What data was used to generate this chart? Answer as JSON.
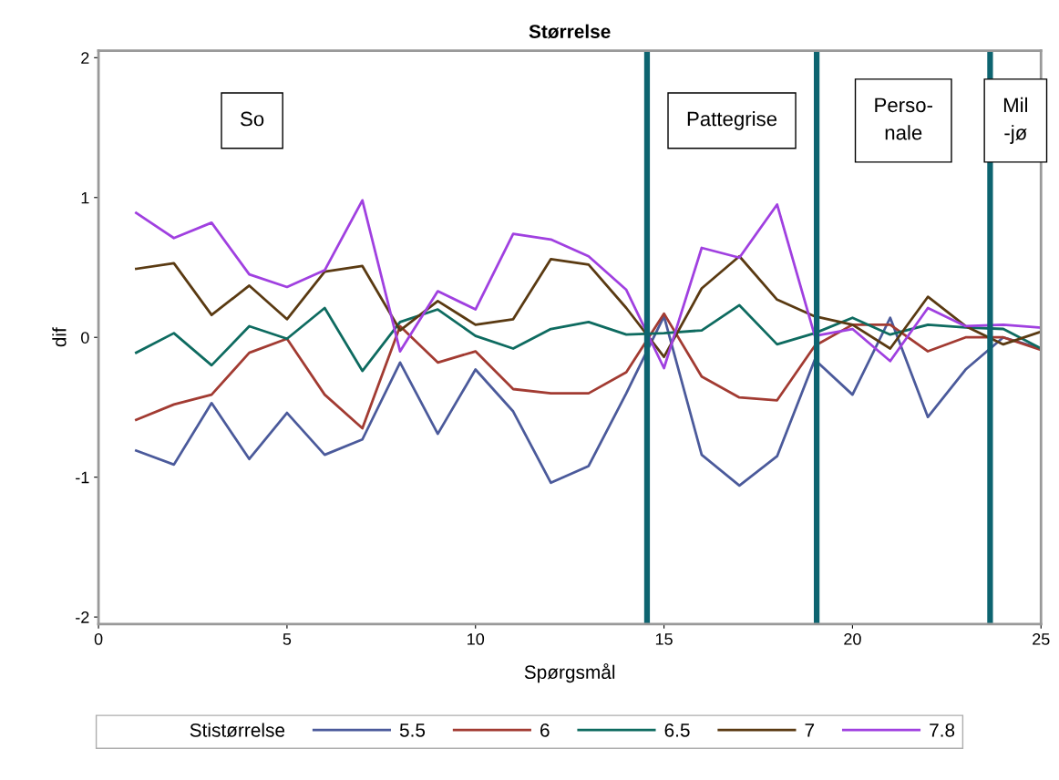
{
  "chart_data": {
    "type": "line",
    "title": "Størrelse",
    "xlabel": "Spørgsmål",
    "ylabel": "dif",
    "legend_title": "Stistørrelse",
    "legend": "bottom",
    "grid": false,
    "marker": "none",
    "line_style": "solid",
    "x": [
      1,
      2,
      3,
      4,
      5,
      6,
      7,
      8,
      9,
      10,
      11,
      12,
      13,
      14,
      15,
      16,
      17,
      18,
      19,
      20,
      21,
      22,
      23,
      24,
      25
    ],
    "xlim": [
      0,
      25
    ],
    "xticks": [
      0,
      5,
      10,
      15,
      20,
      25
    ],
    "ylim": [
      -2.05,
      2.05
    ],
    "yticks": [
      -2,
      -1,
      0,
      1,
      2
    ],
    "series": [
      {
        "name": "5.5",
        "color": "#4b5a9b",
        "values": [
          -0.81,
          -0.91,
          -0.47,
          -0.87,
          -0.54,
          -0.84,
          -0.73,
          -0.18,
          -0.69,
          -0.23,
          -0.53,
          -1.04,
          -0.92,
          -0.4,
          0.15,
          -0.84,
          -1.06,
          -0.85,
          -0.16,
          -0.41,
          0.14,
          -0.57,
          -0.23,
          0.0,
          -0.08
        ]
      },
      {
        "name": "6",
        "color": "#a23b32",
        "values": [
          -0.59,
          -0.48,
          -0.41,
          -0.11,
          -0.01,
          -0.41,
          -0.65,
          0.08,
          -0.18,
          -0.1,
          -0.37,
          -0.4,
          -0.4,
          -0.25,
          0.17,
          -0.28,
          -0.43,
          -0.45,
          -0.06,
          0.09,
          0.09,
          -0.1,
          0.0,
          0.0,
          -0.09
        ]
      },
      {
        "name": "6.5",
        "color": "#0e6b60",
        "values": [
          -0.11,
          0.03,
          -0.2,
          0.08,
          -0.01,
          0.21,
          -0.24,
          0.11,
          0.2,
          0.01,
          -0.08,
          0.06,
          0.11,
          0.02,
          0.03,
          0.05,
          0.23,
          -0.05,
          0.03,
          0.14,
          0.02,
          0.09,
          0.07,
          0.06,
          -0.08
        ]
      },
      {
        "name": "7",
        "color": "#5a3a12",
        "values": [
          0.49,
          0.53,
          0.16,
          0.37,
          0.13,
          0.47,
          0.51,
          0.05,
          0.26,
          0.09,
          0.13,
          0.56,
          0.52,
          0.21,
          -0.14,
          0.35,
          0.58,
          0.27,
          0.15,
          0.09,
          -0.08,
          0.29,
          0.08,
          -0.05,
          0.04
        ]
      },
      {
        "name": "7.8",
        "color": "#a040e0",
        "values": [
          0.89,
          0.71,
          0.82,
          0.45,
          0.36,
          0.48,
          0.98,
          -0.1,
          0.33,
          0.2,
          0.74,
          0.7,
          0.58,
          0.34,
          -0.22,
          0.64,
          0.57,
          0.95,
          0.01,
          0.06,
          -0.17,
          0.21,
          0.08,
          0.09,
          0.07
        ]
      }
    ],
    "ref_lines": [
      {
        "axis": "x",
        "value": 14.55,
        "color": "#0d6470"
      },
      {
        "axis": "x",
        "value": 19.05,
        "color": "#0d6470"
      },
      {
        "axis": "x",
        "value": 23.65,
        "color": "#0d6470"
      }
    ],
    "annotations": [
      "So",
      "Pattegrise",
      "Perso-\nnale",
      "Mil\n-jø"
    ]
  }
}
